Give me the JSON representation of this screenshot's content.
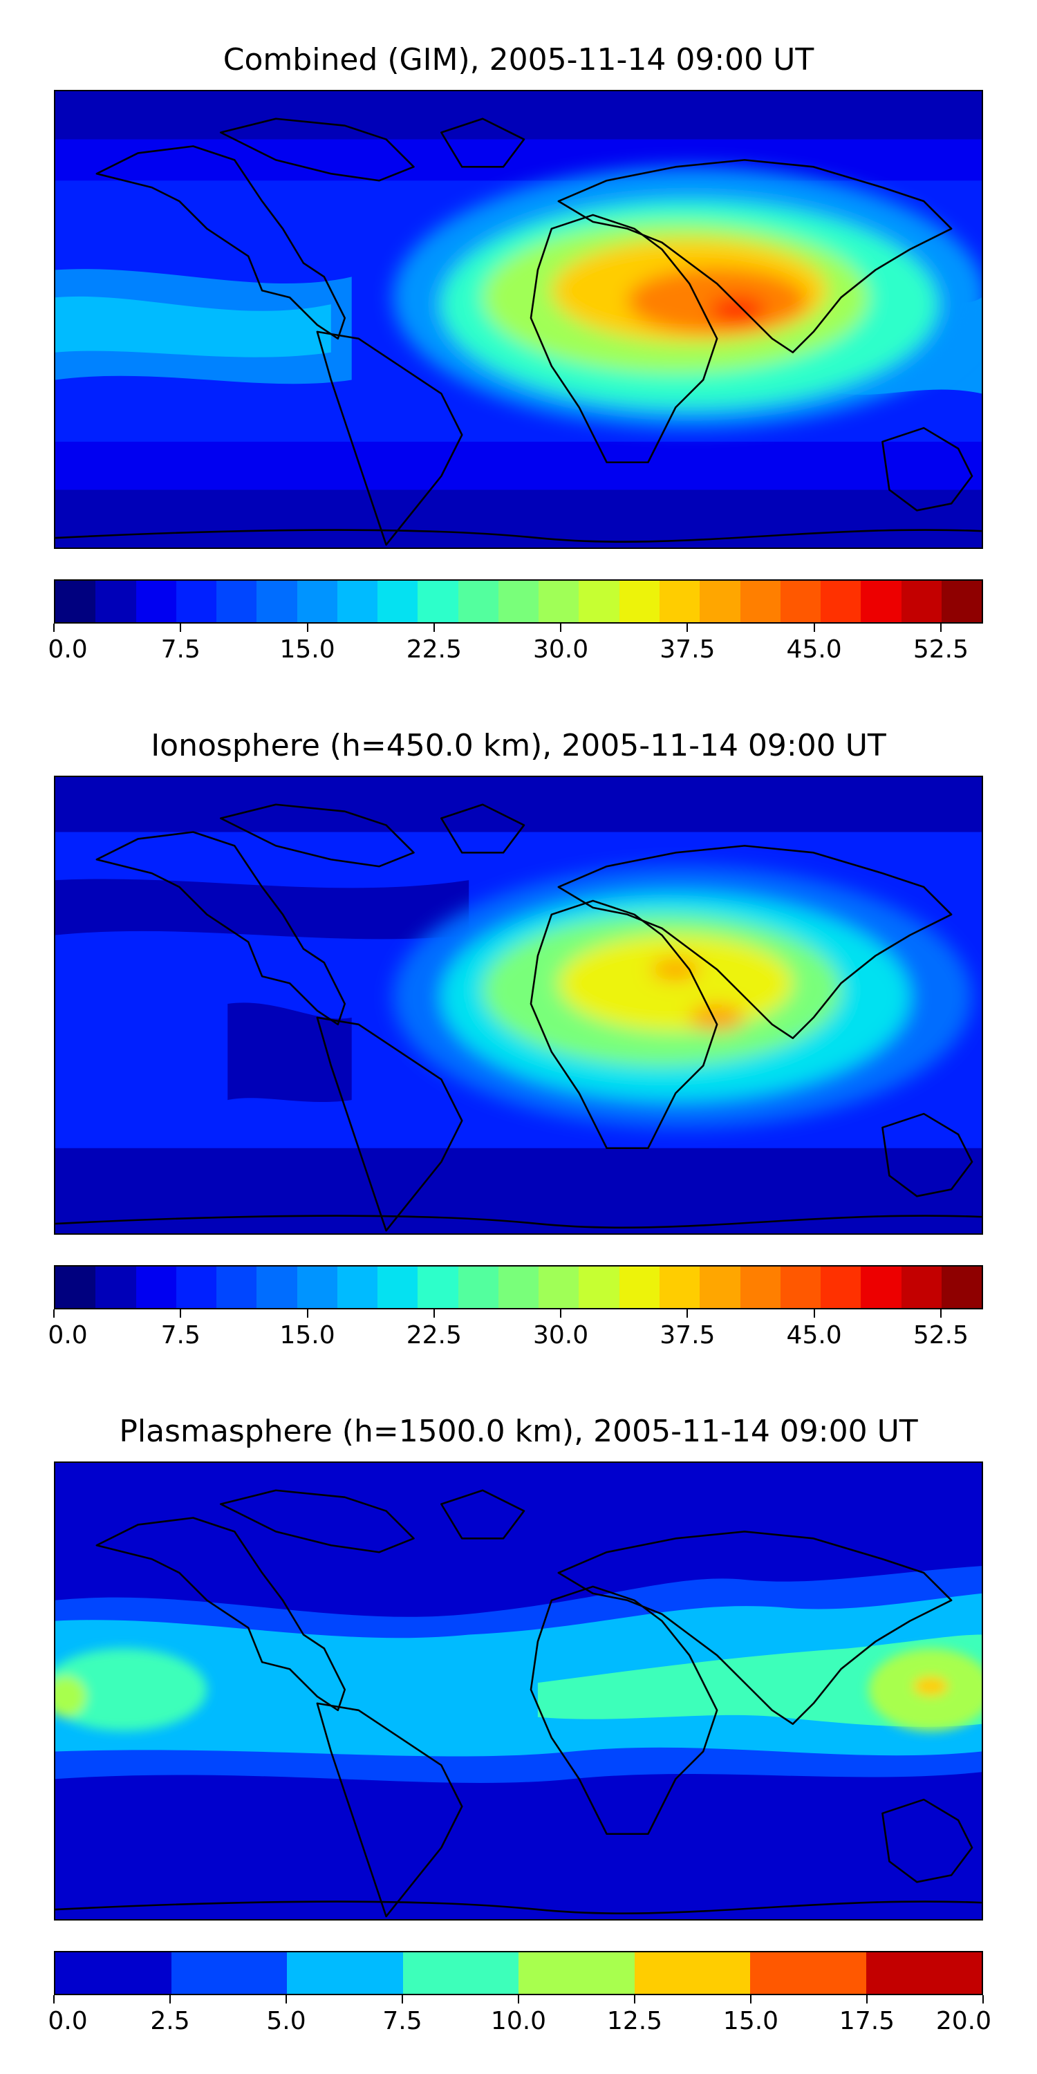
{
  "panels": [
    {
      "title": "Combined (GIM), 2005-11-14 09:00 UT",
      "colorbar": {
        "levels": [
          "#00007f",
          "#0000b8",
          "#0000f1",
          "#0020ff",
          "#0046ff",
          "#006dff",
          "#0094ff",
          "#00bbff",
          "#05e1f1",
          "#2dffca",
          "#53ff9e",
          "#79ff7a",
          "#a0ff57",
          "#c6ff32",
          "#edf30a",
          "#ffcd00",
          "#ffa600",
          "#ff7f00",
          "#ff5800",
          "#ff3100",
          "#ed0000",
          "#c30000",
          "#8f0000"
        ],
        "tick_labels": [
          "0.0",
          "7.5",
          "15.0",
          "22.5",
          "30.0",
          "37.5",
          "45.0",
          "52.5"
        ],
        "tick_values": [
          0,
          7.5,
          15,
          22.5,
          30,
          37.5,
          45,
          52.5
        ],
        "vmin": 0,
        "vmax": 55
      },
      "hotspots": [
        {
          "lon": 75,
          "lat": 8,
          "r_lon": 95,
          "r_lat": 30,
          "color": "#53ff9e"
        },
        {
          "lon": 70,
          "lat": 10,
          "r_lon": 70,
          "r_lat": 22,
          "color": "#c6ff32"
        },
        {
          "lon": 72,
          "lat": 12,
          "r_lon": 50,
          "r_lat": 16,
          "color": "#ffcd00"
        },
        {
          "lon": 82,
          "lat": 8,
          "r_lon": 32,
          "r_lat": 12,
          "color": "#ff7f00"
        },
        {
          "lon": 80,
          "lat": 4,
          "r_lon": 14,
          "r_lat": 6,
          "color": "#ff3100"
        }
      ]
    },
    {
      "title": "Ionosphere  (h=450.0 km), 2005-11-14 09:00 UT",
      "colorbar": {
        "levels": [
          "#00007f",
          "#0000b8",
          "#0000f1",
          "#0020ff",
          "#0046ff",
          "#006dff",
          "#0094ff",
          "#00bbff",
          "#05e1f1",
          "#2dffca",
          "#53ff9e",
          "#79ff7a",
          "#a0ff57",
          "#c6ff32",
          "#edf30a",
          "#ffcd00",
          "#ffa600",
          "#ff7f00",
          "#ff5800",
          "#ff3100",
          "#ed0000",
          "#c30000",
          "#8f0000"
        ],
        "tick_labels": [
          "0.0",
          "7.5",
          "15.0",
          "22.5",
          "30.0",
          "37.5",
          "45.0",
          "52.5"
        ],
        "tick_values": [
          0,
          7.5,
          15,
          22.5,
          30,
          37.5,
          45,
          52.5
        ],
        "vmin": 0,
        "vmax": 55
      },
      "hotspots": [
        {
          "lon": 70,
          "lat": 8,
          "r_lon": 85,
          "r_lat": 28,
          "color": "#2dffca"
        },
        {
          "lon": 65,
          "lat": 10,
          "r_lon": 62,
          "r_lat": 20,
          "color": "#a0ff57"
        },
        {
          "lon": 68,
          "lat": 10,
          "r_lon": 42,
          "r_lat": 14,
          "color": "#edf30a"
        },
        {
          "lon": 80,
          "lat": 2,
          "r_lon": 14,
          "r_lat": 6,
          "color": "#ffcd00"
        },
        {
          "lon": 60,
          "lat": 18,
          "r_lon": 12,
          "r_lat": 5,
          "color": "#ffcd00"
        }
      ]
    },
    {
      "title": "Plasmasphere (h=1500.0 km), 2005-11-14 09:00 UT",
      "colorbar": {
        "levels": [
          "#0000cd",
          "#0046ff",
          "#00bbff",
          "#3dffba",
          "#a8ff4e",
          "#ffcd00",
          "#ff5800",
          "#c30000"
        ],
        "tick_labels": [
          "0.0",
          "2.5",
          "5.0",
          "7.5",
          "10.0",
          "12.5",
          "15.0",
          "17.5",
          "20.0"
        ],
        "tick_values": [
          0,
          2.5,
          5,
          7.5,
          10,
          12.5,
          15,
          17.5,
          20
        ],
        "vmin": 0,
        "vmax": 20
      },
      "hotspots": [
        {
          "lon": -170,
          "lat": -2,
          "r_lon": 22,
          "r_lat": 10,
          "color": "#3dffba"
        },
        {
          "lon": -180,
          "lat": -4,
          "r_lon": 8,
          "r_lat": 6,
          "color": "#a8ff4e"
        },
        {
          "lon": 160,
          "lat": 0,
          "r_lon": 28,
          "r_lat": 12,
          "color": "#a8ff4e"
        },
        {
          "lon": 160,
          "lat": 2,
          "r_lon": 8,
          "r_lat": 4,
          "color": "#ffcd00"
        }
      ]
    }
  ]
}
